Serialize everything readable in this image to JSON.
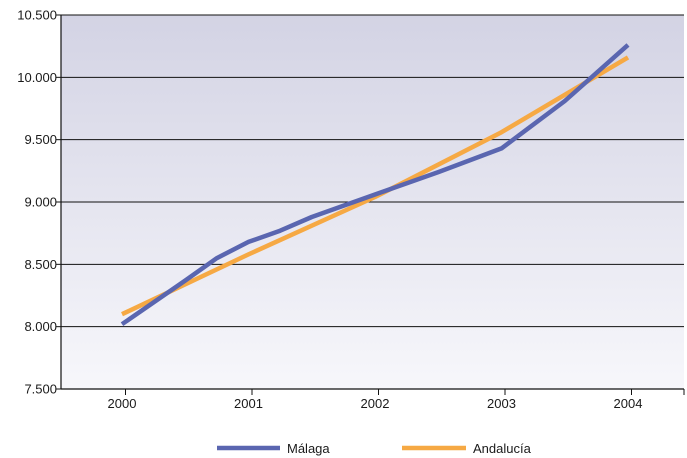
{
  "chart_data": {
    "type": "line",
    "categories": [
      "2000",
      "2001",
      "2002",
      "2003",
      "2004"
    ],
    "x": [
      2000,
      2001,
      2002,
      2003,
      2004
    ],
    "y_ticks": [
      "7.500",
      "8.000",
      "8.500",
      "9.000",
      "9.500",
      "10.000",
      "10.500"
    ],
    "ylim": [
      7500,
      10500
    ],
    "grid": true,
    "legend_position": "bottom",
    "series": [
      {
        "name": "Málaga",
        "color": "#5a66b0",
        "x": [
          2000,
          2000.5,
          2000.75,
          2001,
          2001.25,
          2001.5,
          2002,
          2002.5,
          2003,
          2003.5,
          2004
        ],
        "values": [
          8020,
          8370,
          8550,
          8680,
          8770,
          8880,
          9060,
          9240,
          9430,
          9810,
          10260
        ]
      },
      {
        "name": "Andalucía",
        "color": "#f6a944",
        "x": [
          2000,
          2001,
          2002,
          2003,
          2004
        ],
        "values": [
          8100,
          8580,
          9040,
          9560,
          10160
        ]
      }
    ]
  }
}
